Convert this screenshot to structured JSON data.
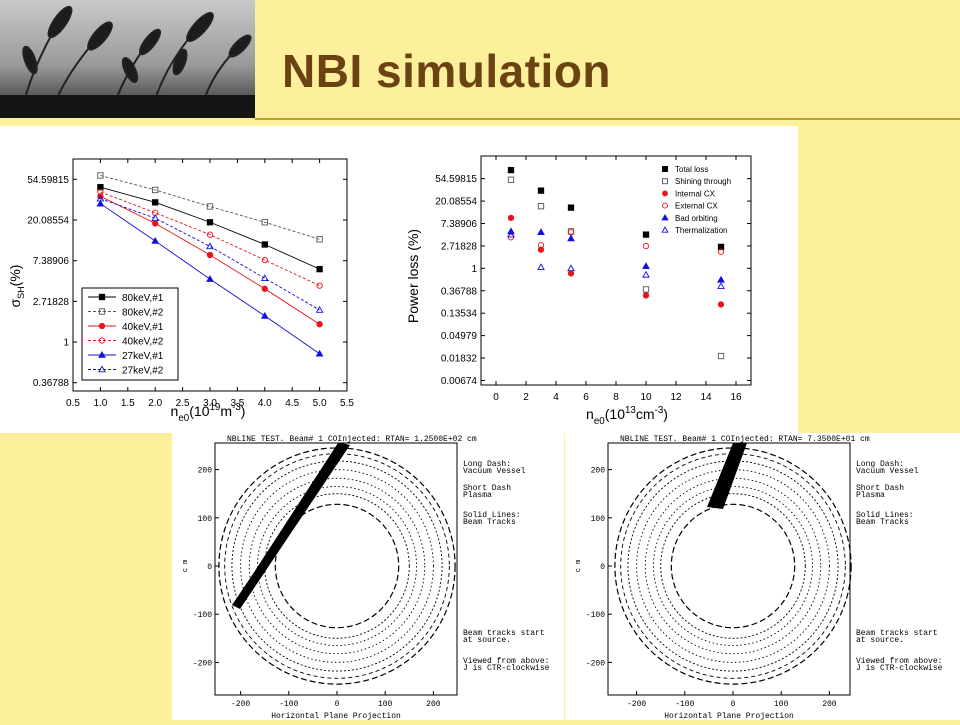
{
  "slide": {
    "title": "NBI simulation",
    "colors": {
      "background": "#fdf09c",
      "title": "#6b4312",
      "rule": "#bba030"
    }
  },
  "chart_data": [
    {
      "type": "line",
      "y_scale": "log",
      "xlim": [
        0.5,
        5.5
      ],
      "ylim": [
        0.3,
        90
      ],
      "xticks": [
        "0.5",
        "1.0",
        "1.5",
        "2.0",
        "2.5",
        "3.0",
        "3.5",
        "4.0",
        "4.5",
        "5.0",
        "5.5"
      ],
      "yticks": [
        {
          "label": "54.59815",
          "value": 54.59815
        },
        {
          "label": "20.08554",
          "value": 20.08554
        },
        {
          "label": "7.38906",
          "value": 7.38906
        },
        {
          "label": "2.71828",
          "value": 2.71828
        },
        {
          "label": "1",
          "value": 1
        },
        {
          "label": "0.36788",
          "value": 0.36788
        }
      ],
      "xlabel": {
        "base": "n",
        "sub": "e0",
        "p1": "(10",
        "sup": "19",
        "p2": "m",
        "sup2": "-3",
        "p3": ")"
      },
      "ylabel": {
        "base": "σ",
        "sub": "SH",
        "rest": "(%)"
      },
      "x": [
        1,
        2,
        3,
        4,
        5
      ],
      "series": [
        {
          "name": "80keV,#1",
          "values": [
            45.0,
            31.0,
            19.0,
            11.0,
            6.0
          ],
          "color": "#000000",
          "dash": false,
          "marker": "square",
          "filled": true
        },
        {
          "name": "80keV,#2",
          "values": [
            60.0,
            42.0,
            28.0,
            19.0,
            12.5
          ],
          "color": "#555555",
          "dash": true,
          "marker": "square",
          "filled": false
        },
        {
          "name": "40keV,#1",
          "values": [
            36.0,
            18.5,
            8.5,
            3.7,
            1.55
          ],
          "color": "#e8141a",
          "dash": false,
          "marker": "circle",
          "filled": true
        },
        {
          "name": "40keV,#2",
          "values": [
            40.0,
            24.0,
            14.0,
            7.5,
            4.0
          ],
          "color": "#e8141a",
          "dash": true,
          "marker": "circle",
          "filled": false
        },
        {
          "name": "27keV,#1",
          "values": [
            30.0,
            12.0,
            4.7,
            1.9,
            0.75
          ],
          "color": "#1010e0",
          "dash": false,
          "marker": "triangle",
          "filled": true
        },
        {
          "name": "27keV,#2",
          "values": [
            34.0,
            21.0,
            10.5,
            4.8,
            2.2
          ],
          "color": "#1010e0",
          "dash": true,
          "marker": "triangle",
          "filled": false
        }
      ],
      "legend": "bottom-left"
    },
    {
      "type": "scatter",
      "y_scale": "log",
      "xlim": [
        -1,
        17
      ],
      "ylim": [
        0.0055,
        150
      ],
      "xticks": [
        "0",
        "2",
        "4",
        "6",
        "8",
        "10",
        "12",
        "14",
        "16"
      ],
      "yticks": [
        {
          "label": "54.59815",
          "value": 54.59815
        },
        {
          "label": "20.08554",
          "value": 20.08554
        },
        {
          "label": "7.38906",
          "value": 7.38906
        },
        {
          "label": "2.71828",
          "value": 2.71828
        },
        {
          "label": "1",
          "value": 1
        },
        {
          "label": "0.36788",
          "value": 0.36788
        },
        {
          "label": "0.13534",
          "value": 0.13534
        },
        {
          "label": "0.04979",
          "value": 0.04979
        },
        {
          "label": "0.01832",
          "value": 0.01832
        },
        {
          "label": "0.00674",
          "value": 0.00674
        }
      ],
      "xlabel": {
        "base": "n",
        "sub": "e0",
        "p1": "(10",
        "sup": "13",
        "p2": "cm",
        "sup2": "-3",
        "p3": ")"
      },
      "ylabel": "Power loss (%)",
      "x": [
        1,
        3,
        5,
        10,
        15
      ],
      "series": [
        {
          "name": "Total loss",
          "values": [
            80,
            32,
            15,
            4.5,
            2.6
          ],
          "color": "#000000",
          "marker": "square",
          "filled": true
        },
        {
          "name": "Shining through",
          "values": [
            52,
            16,
            5.2,
            0.39,
            0.02
          ],
          "color": "#555555",
          "marker": "square",
          "filled": false
        },
        {
          "name": "Internal CX",
          "values": [
            9.5,
            2.3,
            0.8,
            0.3,
            0.2
          ],
          "color": "#e8141a",
          "marker": "circle",
          "filled": true
        },
        {
          "name": "External CX",
          "values": [
            4.0,
            2.8,
            5.0,
            2.7,
            2.1
          ],
          "color": "#e8141a",
          "marker": "circle",
          "filled": false
        },
        {
          "name": "Bad orbiting",
          "values": [
            5.2,
            5.0,
            3.8,
            1.1,
            0.6
          ],
          "color": "#1010e0",
          "marker": "triangle",
          "filled": true
        },
        {
          "name": "Thermalization",
          "values": [
            4.5,
            1.05,
            1.0,
            0.75,
            0.45
          ],
          "color": "#1010e0",
          "marker": "triangle",
          "filled": false
        }
      ],
      "legend": "top-right"
    }
  ],
  "projections": [
    {
      "header": "NBLINE TEST. Beam# 1 COInjected: RTAN= 1.2500E+02 cm",
      "xlabel": "Horizontal Plane Projection",
      "ylabel_glyph": "c m",
      "xticks": [
        "-200",
        "-100",
        "0",
        "100",
        "200"
      ],
      "yticks": [
        "200",
        "100",
        "0",
        "-100",
        "-200"
      ],
      "notes": [
        "Long Dash:",
        "  Vacuum Vessel",
        "Short Dash",
        "  Plasma",
        "Solid Lines:",
        "  Beam Tracks",
        "Beam tracks start",
        "at source.",
        "Viewed from above:",
        "J is CTR-clockwise"
      ],
      "rtan_cm": 125
    },
    {
      "header": "NBLINE TEST. Beam# 1 COInjected: RTAN= 7.3500E+01 cm",
      "xlabel": "Horizontal Plane Projection",
      "ylabel_glyph": "c m",
      "xticks": [
        "-200",
        "-100",
        "0",
        "100",
        "200"
      ],
      "yticks": [
        "200",
        "100",
        "0",
        "-100",
        "-200"
      ],
      "notes": [
        "Long Dash:",
        "  Vacuum Vessel",
        "Short Dash",
        "  Plasma",
        "Solid Lines:",
        "  Beam Tracks",
        "Beam tracks start",
        "at source.",
        "Viewed from above:",
        "J is CTR-clockwise"
      ],
      "rtan_cm": 73.5
    }
  ]
}
